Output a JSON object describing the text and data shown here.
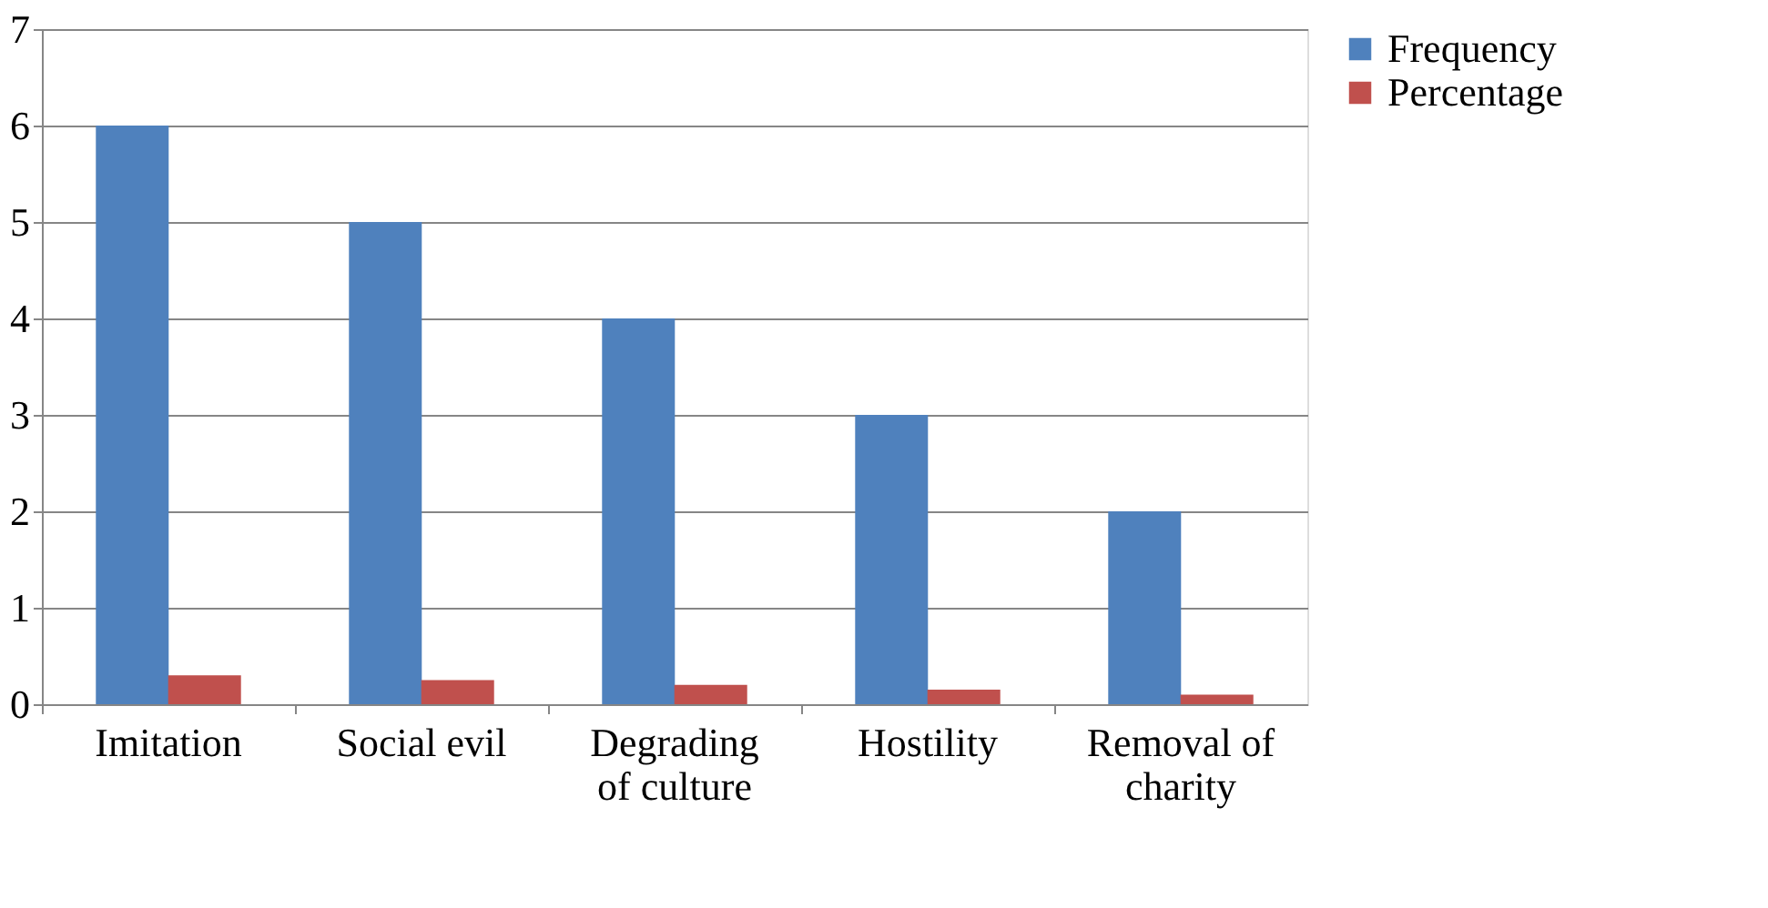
{
  "chart_data": {
    "type": "bar",
    "categories": [
      "Imitation",
      "Social evil",
      "Degrading of culture",
      "Hostility",
      "Removal of charity"
    ],
    "series": [
      {
        "name": "Frequency",
        "color": "#4f81bd",
        "values": [
          6,
          5,
          4,
          3,
          2
        ]
      },
      {
        "name": "Percentage",
        "color": "#c0504d",
        "values": [
          0.3,
          0.25,
          0.2,
          0.15,
          0.1
        ]
      }
    ],
    "ylim": [
      0,
      7
    ],
    "yticks": [
      0,
      1,
      2,
      3,
      4,
      5,
      6,
      7
    ],
    "grid": "y",
    "legend": "right"
  }
}
